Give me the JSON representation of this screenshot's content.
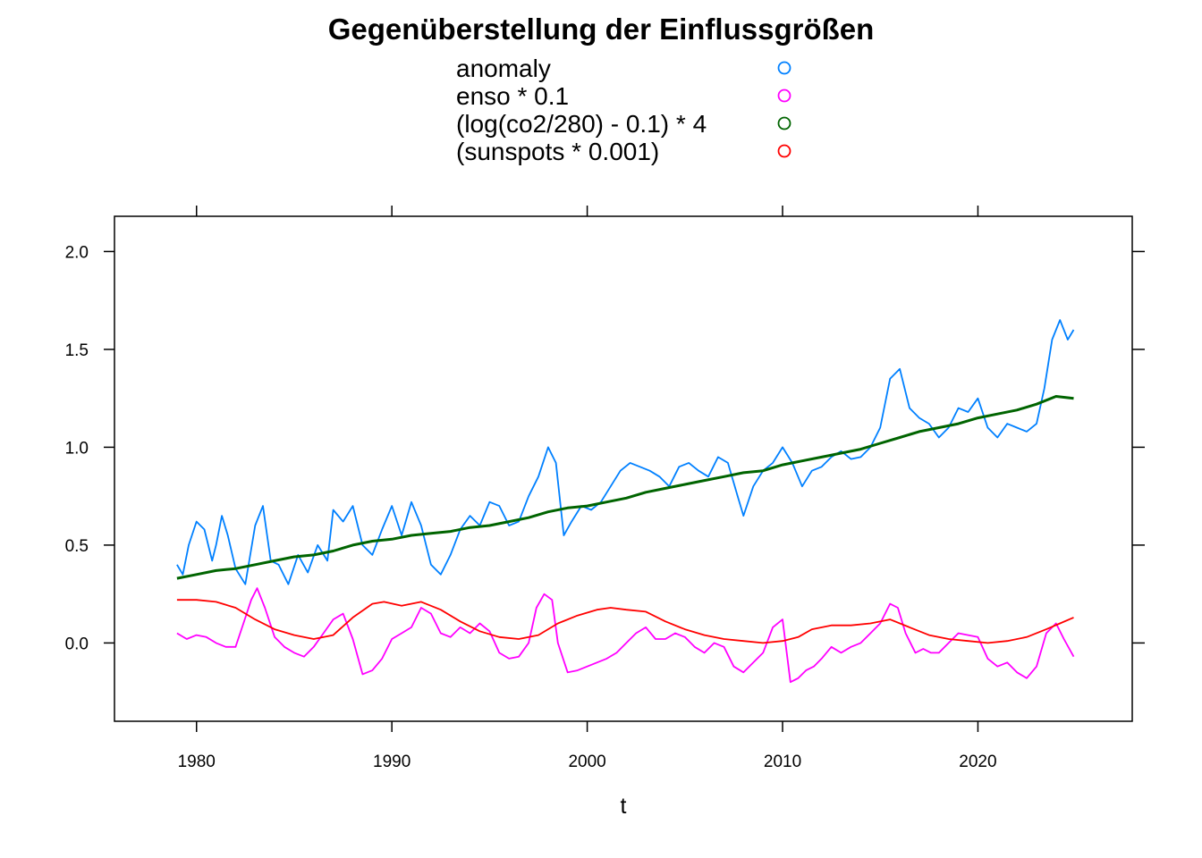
{
  "chart_data": {
    "type": "line",
    "title": "Gegenüberstellung der Einflussgrößen",
    "xlabel": "t",
    "ylabel": "",
    "xlim": [
      1975.8,
      2027.9
    ],
    "ylim": [
      -0.4,
      2.18
    ],
    "x_ticks": [
      1980,
      1990,
      2000,
      2010,
      2020
    ],
    "y_ticks": [
      0.0,
      0.5,
      1.0,
      1.5,
      2.0
    ],
    "x_tick_labels": [
      "1980",
      "1990",
      "2000",
      "2010",
      "2020"
    ],
    "y_tick_labels": [
      "0.0",
      "0.5",
      "1.0",
      "1.5",
      "2.0"
    ],
    "grid": false,
    "legend_position": "top",
    "series": [
      {
        "name": "anomaly",
        "color": "#0080ff",
        "stroke": "thin",
        "x": [
          1979.0,
          1979.3,
          1979.6,
          1980.0,
          1980.4,
          1980.8,
          1981.0,
          1981.3,
          1981.6,
          1982.0,
          1982.5,
          1983.0,
          1983.4,
          1983.8,
          1984.2,
          1984.7,
          1985.2,
          1985.7,
          1986.2,
          1986.7,
          1987.0,
          1987.5,
          1988.0,
          1988.5,
          1989.0,
          1989.5,
          1990.0,
          1990.5,
          1991.0,
          1991.5,
          1992.0,
          1992.5,
          1993.0,
          1993.5,
          1994.0,
          1994.5,
          1995.0,
          1995.5,
          1996.0,
          1996.5,
          1997.0,
          1997.5,
          1998.0,
          1998.4,
          1998.8,
          1999.2,
          1999.7,
          2000.2,
          2000.7,
          2001.2,
          2001.7,
          2002.2,
          2002.7,
          2003.2,
          2003.7,
          2004.2,
          2004.7,
          2005.2,
          2005.7,
          2006.2,
          2006.7,
          2007.2,
          2007.7,
          2008.0,
          2008.5,
          2009.0,
          2009.5,
          2010.0,
          2010.5,
          2011.0,
          2011.5,
          2012.0,
          2012.5,
          2013.0,
          2013.5,
          2014.0,
          2014.5,
          2015.0,
          2015.5,
          2016.0,
          2016.5,
          2017.0,
          2017.5,
          2018.0,
          2018.5,
          2019.0,
          2019.5,
          2020.0,
          2020.5,
          2021.0,
          2021.5,
          2022.0,
          2022.5,
          2023.0,
          2023.4,
          2023.8,
          2024.2,
          2024.6,
          2024.9
        ],
        "y": [
          0.4,
          0.35,
          0.5,
          0.62,
          0.58,
          0.42,
          0.5,
          0.65,
          0.55,
          0.38,
          0.3,
          0.6,
          0.7,
          0.42,
          0.4,
          0.3,
          0.45,
          0.36,
          0.5,
          0.42,
          0.68,
          0.62,
          0.7,
          0.5,
          0.45,
          0.58,
          0.7,
          0.55,
          0.72,
          0.6,
          0.4,
          0.35,
          0.45,
          0.58,
          0.65,
          0.6,
          0.72,
          0.7,
          0.6,
          0.62,
          0.75,
          0.85,
          1.0,
          0.92,
          0.55,
          0.62,
          0.7,
          0.68,
          0.72,
          0.8,
          0.88,
          0.92,
          0.9,
          0.88,
          0.85,
          0.8,
          0.9,
          0.92,
          0.88,
          0.85,
          0.95,
          0.92,
          0.75,
          0.65,
          0.8,
          0.88,
          0.92,
          1.0,
          0.92,
          0.8,
          0.88,
          0.9,
          0.95,
          0.98,
          0.94,
          0.95,
          1.0,
          1.1,
          1.35,
          1.4,
          1.2,
          1.15,
          1.12,
          1.05,
          1.1,
          1.2,
          1.18,
          1.25,
          1.1,
          1.05,
          1.12,
          1.1,
          1.08,
          1.12,
          1.3,
          1.55,
          1.65,
          1.55,
          1.6
        ]
      },
      {
        "name": "enso * 0.1",
        "color": "#ff00ff",
        "stroke": "thin",
        "x": [
          1979.0,
          1979.5,
          1980.0,
          1980.5,
          1981.0,
          1981.5,
          1982.0,
          1982.4,
          1982.8,
          1983.1,
          1983.5,
          1984.0,
          1984.5,
          1985.0,
          1985.5,
          1986.0,
          1986.5,
          1987.0,
          1987.5,
          1988.0,
          1988.5,
          1989.0,
          1989.5,
          1990.0,
          1990.5,
          1991.0,
          1991.5,
          1992.0,
          1992.5,
          1993.0,
          1993.5,
          1994.0,
          1994.5,
          1995.0,
          1995.5,
          1996.0,
          1996.5,
          1997.0,
          1997.4,
          1997.8,
          1998.2,
          1998.5,
          1999.0,
          1999.5,
          2000.0,
          2000.5,
          2001.0,
          2001.5,
          2002.0,
          2002.5,
          2003.0,
          2003.5,
          2004.0,
          2004.5,
          2005.0,
          2005.5,
          2006.0,
          2006.5,
          2007.0,
          2007.5,
          2008.0,
          2008.5,
          2009.0,
          2009.5,
          2010.0,
          2010.4,
          2010.8,
          2011.2,
          2011.6,
          2012.0,
          2012.5,
          2013.0,
          2013.5,
          2014.0,
          2014.5,
          2015.0,
          2015.5,
          2015.9,
          2016.3,
          2016.8,
          2017.2,
          2017.6,
          2018.0,
          2018.5,
          2019.0,
          2019.5,
          2020.0,
          2020.5,
          2021.0,
          2021.5,
          2022.0,
          2022.5,
          2023.0,
          2023.5,
          2024.0,
          2024.4,
          2024.9
        ],
        "y": [
          0.05,
          0.02,
          0.04,
          0.03,
          0.0,
          -0.02,
          -0.02,
          0.1,
          0.22,
          0.28,
          0.18,
          0.03,
          -0.02,
          -0.05,
          -0.07,
          -0.02,
          0.05,
          0.12,
          0.15,
          0.02,
          -0.16,
          -0.14,
          -0.08,
          0.02,
          0.05,
          0.08,
          0.18,
          0.15,
          0.05,
          0.03,
          0.08,
          0.05,
          0.1,
          0.06,
          -0.05,
          -0.08,
          -0.07,
          0.0,
          0.18,
          0.25,
          0.22,
          0.0,
          -0.15,
          -0.14,
          -0.12,
          -0.1,
          -0.08,
          -0.05,
          0.0,
          0.05,
          0.08,
          0.02,
          0.02,
          0.05,
          0.03,
          -0.02,
          -0.05,
          0.0,
          -0.02,
          -0.12,
          -0.15,
          -0.1,
          -0.05,
          0.08,
          0.12,
          -0.2,
          -0.18,
          -0.14,
          -0.12,
          -0.08,
          -0.02,
          -0.05,
          -0.02,
          0.0,
          0.05,
          0.1,
          0.2,
          0.18,
          0.05,
          -0.05,
          -0.03,
          -0.05,
          -0.05,
          0.0,
          0.05,
          0.04,
          0.03,
          -0.08,
          -0.12,
          -0.1,
          -0.15,
          -0.18,
          -0.12,
          0.05,
          0.1,
          0.02,
          -0.07
        ]
      },
      {
        "name": "(log(co2/280) - 0.1) * 4",
        "color": "#006400",
        "stroke": "thick",
        "x": [
          1979.0,
          1980.0,
          1981.0,
          1982.0,
          1983.0,
          1984.0,
          1985.0,
          1986.0,
          1987.0,
          1988.0,
          1989.0,
          1990.0,
          1991.0,
          1992.0,
          1993.0,
          1994.0,
          1995.0,
          1996.0,
          1997.0,
          1998.0,
          1999.0,
          2000.0,
          2001.0,
          2002.0,
          2003.0,
          2004.0,
          2005.0,
          2006.0,
          2007.0,
          2008.0,
          2009.0,
          2010.0,
          2011.0,
          2012.0,
          2013.0,
          2014.0,
          2015.0,
          2016.0,
          2017.0,
          2018.0,
          2019.0,
          2020.0,
          2021.0,
          2022.0,
          2023.0,
          2024.0,
          2024.9
        ],
        "y": [
          0.33,
          0.35,
          0.37,
          0.38,
          0.4,
          0.42,
          0.44,
          0.45,
          0.47,
          0.5,
          0.52,
          0.53,
          0.55,
          0.56,
          0.57,
          0.59,
          0.6,
          0.62,
          0.64,
          0.67,
          0.69,
          0.7,
          0.72,
          0.74,
          0.77,
          0.79,
          0.81,
          0.83,
          0.85,
          0.87,
          0.88,
          0.91,
          0.93,
          0.95,
          0.97,
          0.99,
          1.02,
          1.05,
          1.08,
          1.1,
          1.12,
          1.15,
          1.17,
          1.19,
          1.22,
          1.26,
          1.25
        ]
      },
      {
        "name": "(sunspots * 0.001)",
        "color": "#ff0000",
        "stroke": "thin",
        "x": [
          1979.0,
          1980.0,
          1981.0,
          1982.0,
          1983.0,
          1984.0,
          1985.0,
          1986.0,
          1987.0,
          1988.0,
          1989.0,
          1989.6,
          1990.5,
          1991.5,
          1992.5,
          1993.5,
          1994.5,
          1995.5,
          1996.5,
          1997.5,
          1998.5,
          1999.5,
          2000.5,
          2001.2,
          2002.0,
          2003.0,
          2004.0,
          2005.0,
          2006.0,
          2007.0,
          2008.0,
          2009.0,
          2010.0,
          2010.8,
          2011.5,
          2012.5,
          2013.5,
          2014.5,
          2015.5,
          2016.5,
          2017.5,
          2018.5,
          2019.5,
          2020.5,
          2021.5,
          2022.5,
          2023.5,
          2024.2,
          2024.9
        ],
        "y": [
          0.22,
          0.22,
          0.21,
          0.18,
          0.12,
          0.07,
          0.04,
          0.02,
          0.04,
          0.13,
          0.2,
          0.21,
          0.19,
          0.21,
          0.17,
          0.11,
          0.06,
          0.03,
          0.02,
          0.04,
          0.1,
          0.14,
          0.17,
          0.18,
          0.17,
          0.16,
          0.11,
          0.07,
          0.04,
          0.02,
          0.01,
          0.0,
          0.01,
          0.03,
          0.07,
          0.09,
          0.09,
          0.1,
          0.12,
          0.08,
          0.04,
          0.02,
          0.01,
          0.0,
          0.01,
          0.03,
          0.07,
          0.1,
          0.13
        ]
      }
    ]
  }
}
